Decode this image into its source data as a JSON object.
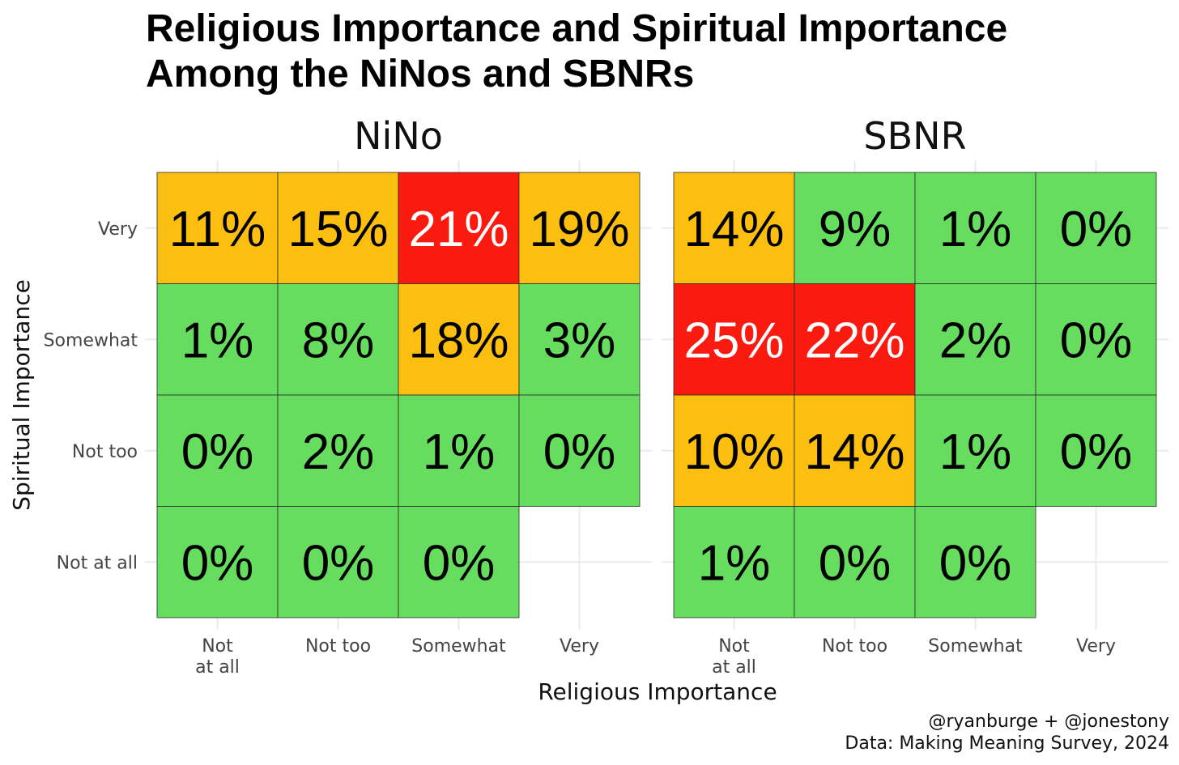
{
  "title_line1": "Religious Importance and Spiritual Importance",
  "title_line2": "Among the NiNos and SBNRs",
  "caption_line1": "@ryanburge + @jonestony",
  "caption_line2": "Data: Making Meaning Survey, 2024",
  "colors": {
    "low": "#66dd5e",
    "mid": "#fcbf10",
    "high": "#fa1a0f",
    "grid": "#ebebeb"
  },
  "chart_data": {
    "type": "heatmap",
    "xlabel": "Religious Importance",
    "ylabel": "Spiritual Importance",
    "x_categories": [
      [
        "Not",
        "at all"
      ],
      [
        "Not too"
      ],
      [
        "Somewhat"
      ],
      [
        "Very"
      ]
    ],
    "y_categories": [
      "Very",
      "Somewhat",
      "Not too",
      "Not at all"
    ],
    "panels": [
      {
        "name": "NiNo",
        "cells": [
          {
            "x": 0,
            "y": 0,
            "label": "11%",
            "value": 11,
            "level": "mid"
          },
          {
            "x": 1,
            "y": 0,
            "label": "15%",
            "value": 15,
            "level": "mid"
          },
          {
            "x": 2,
            "y": 0,
            "label": "21%",
            "value": 21,
            "level": "high"
          },
          {
            "x": 3,
            "y": 0,
            "label": "19%",
            "value": 19,
            "level": "mid"
          },
          {
            "x": 0,
            "y": 1,
            "label": "1%",
            "value": 1,
            "level": "low"
          },
          {
            "x": 1,
            "y": 1,
            "label": "8%",
            "value": 8,
            "level": "low"
          },
          {
            "x": 2,
            "y": 1,
            "label": "18%",
            "value": 18,
            "level": "mid"
          },
          {
            "x": 3,
            "y": 1,
            "label": "3%",
            "value": 3,
            "level": "low"
          },
          {
            "x": 0,
            "y": 2,
            "label": "0%",
            "value": 0,
            "level": "low"
          },
          {
            "x": 1,
            "y": 2,
            "label": "2%",
            "value": 2,
            "level": "low"
          },
          {
            "x": 2,
            "y": 2,
            "label": "1%",
            "value": 1,
            "level": "low"
          },
          {
            "x": 3,
            "y": 2,
            "label": "0%",
            "value": 0,
            "level": "low"
          },
          {
            "x": 0,
            "y": 3,
            "label": "0%",
            "value": 0,
            "level": "low"
          },
          {
            "x": 1,
            "y": 3,
            "label": "0%",
            "value": 0,
            "level": "low"
          },
          {
            "x": 2,
            "y": 3,
            "label": "0%",
            "value": 0,
            "level": "low"
          }
        ]
      },
      {
        "name": "SBNR",
        "cells": [
          {
            "x": 0,
            "y": 0,
            "label": "14%",
            "value": 14,
            "level": "mid"
          },
          {
            "x": 1,
            "y": 0,
            "label": "9%",
            "value": 9,
            "level": "low"
          },
          {
            "x": 2,
            "y": 0,
            "label": "1%",
            "value": 1,
            "level": "low"
          },
          {
            "x": 3,
            "y": 0,
            "label": "0%",
            "value": 0,
            "level": "low"
          },
          {
            "x": 0,
            "y": 1,
            "label": "25%",
            "value": 25,
            "level": "high"
          },
          {
            "x": 1,
            "y": 1,
            "label": "22%",
            "value": 22,
            "level": "high"
          },
          {
            "x": 2,
            "y": 1,
            "label": "2%",
            "value": 2,
            "level": "low"
          },
          {
            "x": 3,
            "y": 1,
            "label": "0%",
            "value": 0,
            "level": "low"
          },
          {
            "x": 0,
            "y": 2,
            "label": "10%",
            "value": 10,
            "level": "mid"
          },
          {
            "x": 1,
            "y": 2,
            "label": "14%",
            "value": 14,
            "level": "mid"
          },
          {
            "x": 2,
            "y": 2,
            "label": "1%",
            "value": 1,
            "level": "low"
          },
          {
            "x": 3,
            "y": 2,
            "label": "0%",
            "value": 0,
            "level": "low"
          },
          {
            "x": 0,
            "y": 3,
            "label": "1%",
            "value": 1,
            "level": "low"
          },
          {
            "x": 1,
            "y": 3,
            "label": "0%",
            "value": 0,
            "level": "low"
          },
          {
            "x": 2,
            "y": 3,
            "label": "0%",
            "value": 0,
            "level": "low"
          }
        ]
      }
    ]
  }
}
